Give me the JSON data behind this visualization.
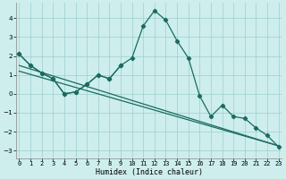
{
  "xlabel": "Humidex (Indice chaleur)",
  "bg_color": "#cdeeed",
  "line_color": "#1a6b60",
  "grid_color": "#9ecece",
  "x_ticks": [
    0,
    1,
    2,
    3,
    4,
    5,
    6,
    7,
    8,
    9,
    10,
    11,
    12,
    13,
    14,
    15,
    16,
    17,
    18,
    19,
    20,
    21,
    22,
    23
  ],
  "ylim": [
    -3.4,
    4.8
  ],
  "xlim": [
    -0.3,
    23.3
  ],
  "series1_x": [
    0,
    1,
    2,
    3,
    4,
    5,
    6,
    7,
    8,
    9,
    10,
    11,
    12,
    13,
    14,
    15,
    16,
    17,
    18,
    19,
    20,
    21,
    22,
    23
  ],
  "series1_y": [
    2.1,
    1.5,
    1.1,
    0.8,
    0.0,
    0.1,
    0.5,
    1.0,
    0.8,
    1.5,
    1.9,
    3.6,
    4.4,
    3.9,
    2.8,
    1.9,
    -0.1,
    -1.2,
    -0.6,
    -1.2,
    -1.3,
    -1.8,
    -2.2,
    -2.8
  ],
  "series2_x": [
    0,
    1,
    2,
    3,
    4,
    5,
    6,
    7,
    8,
    9
  ],
  "series2_y": [
    2.1,
    1.5,
    1.1,
    0.8,
    0.0,
    0.1,
    0.5,
    1.0,
    0.8,
    1.5
  ],
  "line3_x": [
    0,
    23
  ],
  "line3_y": [
    1.5,
    -2.75
  ],
  "line4_x": [
    0,
    23
  ],
  "line4_y": [
    1.2,
    -2.75
  ]
}
